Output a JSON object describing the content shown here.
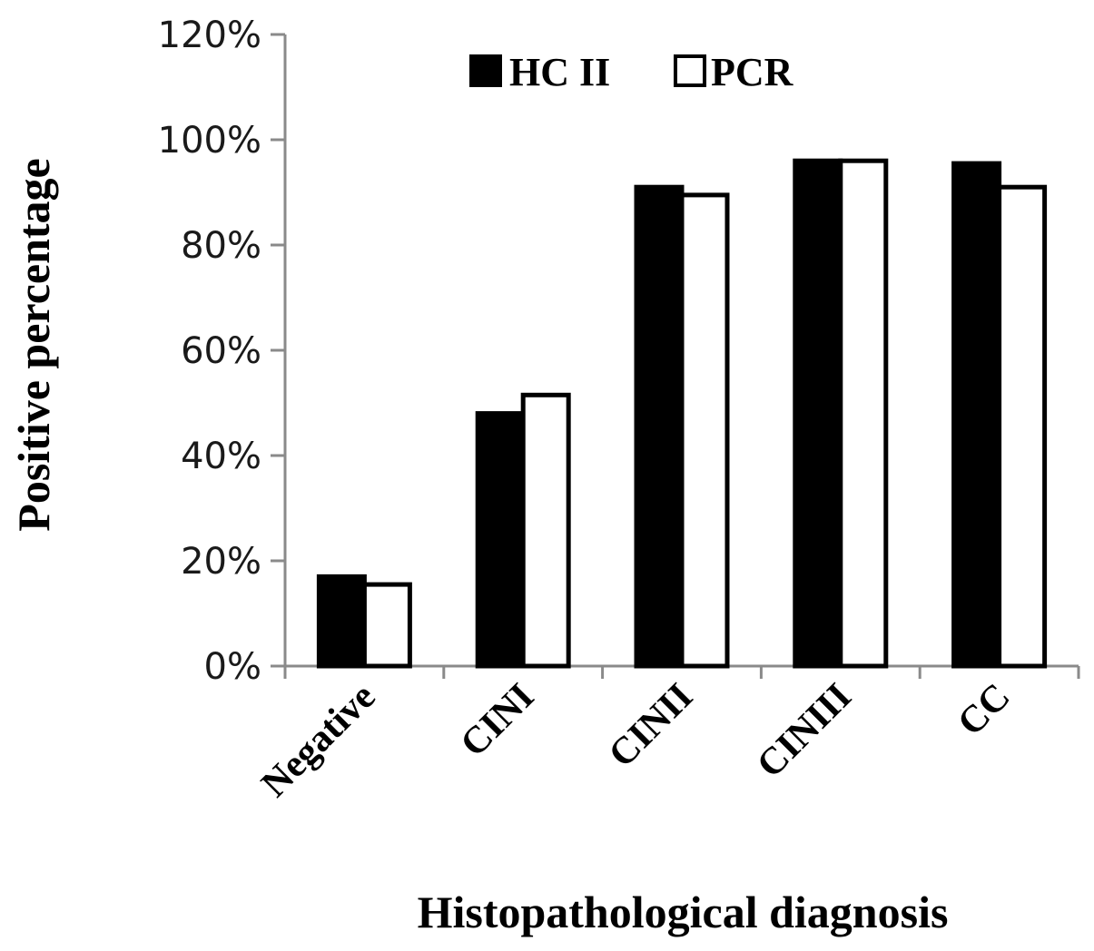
{
  "chart_data": {
    "type": "bar",
    "title": "",
    "xlabel": "Histopathological diagnosis",
    "ylabel": "Positive percentage",
    "categories": [
      "Negative",
      "CINI",
      "CINII",
      "CINIII",
      "CC"
    ],
    "series": [
      {
        "name": "HC II",
        "values": [
          17,
          48,
          91,
          96,
          95.5
        ],
        "fill": "#000000"
      },
      {
        "name": "PCR",
        "values": [
          15.5,
          51.5,
          89.5,
          96,
          91
        ],
        "fill": "#ffffff"
      }
    ],
    "ylim": [
      0,
      120
    ],
    "yticks": [
      "0%",
      "20%",
      "40%",
      "60%",
      "80%",
      "100%",
      "120%"
    ],
    "grid": false,
    "legend_position": "top-center"
  }
}
